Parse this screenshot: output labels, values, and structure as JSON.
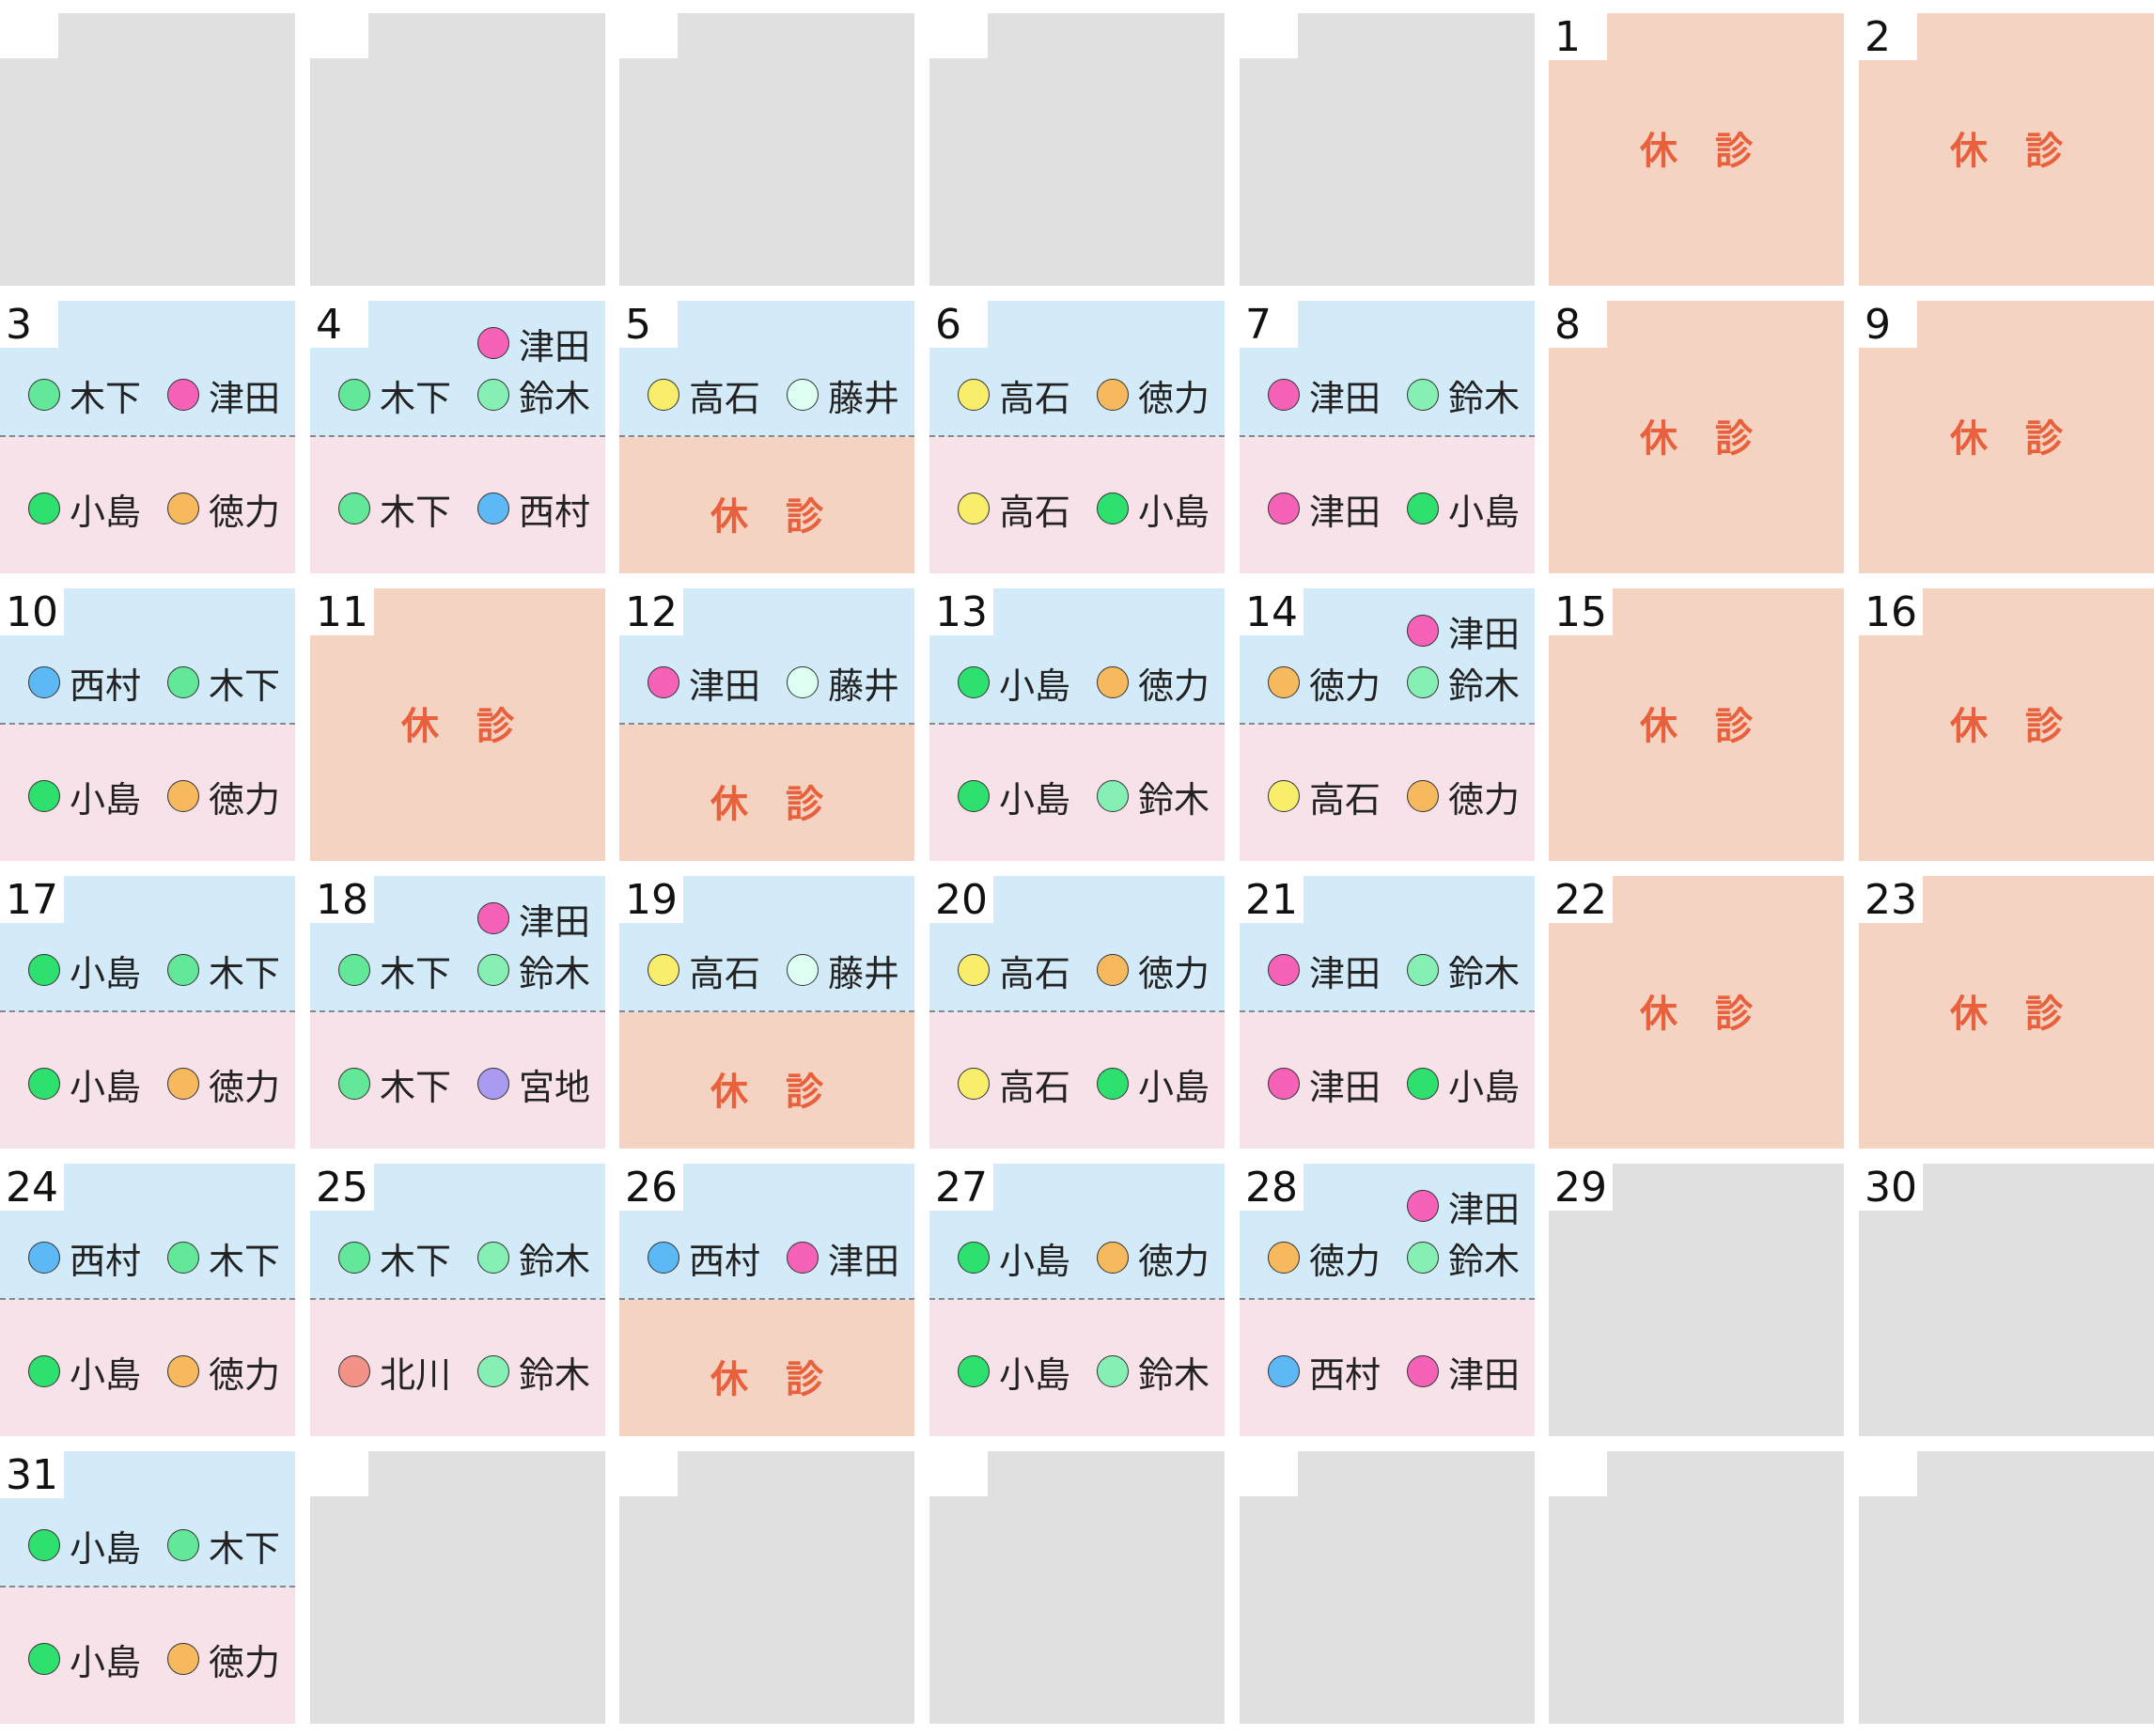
{
  "closed_label": "休　診",
  "weeks": [
    [
      {
        "status": "blank"
      },
      {
        "status": "blank"
      },
      {
        "status": "blank"
      },
      {
        "status": "blank"
      },
      {
        "status": "blank"
      },
      {
        "day": 1,
        "status": "closed"
      },
      {
        "day": 2,
        "status": "closed"
      }
    ],
    [
      {
        "day": 3,
        "status": "clinic",
        "am": [
          {
            "name": "木下",
            "color": "#62e898"
          },
          {
            "name": "津田",
            "color": "#f562b8"
          }
        ],
        "pm": [
          {
            "name": "小島",
            "color": "#2ee06e"
          },
          {
            "name": "徳力",
            "color": "#f6b95e"
          }
        ]
      },
      {
        "day": 4,
        "status": "clinic",
        "am": [
          {
            "name": "津田",
            "color": "#f562b8"
          },
          {
            "name": "木下",
            "color": "#62e898"
          },
          {
            "name": "鈴木",
            "color": "#86f0b4"
          }
        ],
        "pm": [
          {
            "name": "木下",
            "color": "#62e898"
          },
          {
            "name": "西村",
            "color": "#5cb9f6"
          }
        ]
      },
      {
        "day": 5,
        "status": "am_only",
        "am": [
          {
            "name": "高石",
            "color": "#f8ee6c"
          },
          {
            "name": "藤井",
            "color": "#dcfff2"
          }
        ]
      },
      {
        "day": 6,
        "status": "clinic",
        "am": [
          {
            "name": "高石",
            "color": "#f8ee6c"
          },
          {
            "name": "徳力",
            "color": "#f6b95e"
          }
        ],
        "pm": [
          {
            "name": "高石",
            "color": "#f8ee6c"
          },
          {
            "name": "小島",
            "color": "#2ee06e"
          }
        ]
      },
      {
        "day": 7,
        "status": "clinic",
        "am": [
          {
            "name": "津田",
            "color": "#f562b8"
          },
          {
            "name": "鈴木",
            "color": "#86f0b4"
          }
        ],
        "pm": [
          {
            "name": "津田",
            "color": "#f562b8"
          },
          {
            "name": "小島",
            "color": "#2ee06e"
          }
        ]
      },
      {
        "day": 8,
        "status": "closed"
      },
      {
        "day": 9,
        "status": "closed"
      }
    ],
    [
      {
        "day": 10,
        "status": "clinic",
        "am": [
          {
            "name": "西村",
            "color": "#5cb9f6"
          },
          {
            "name": "木下",
            "color": "#62e898"
          }
        ],
        "pm": [
          {
            "name": "小島",
            "color": "#2ee06e"
          },
          {
            "name": "徳力",
            "color": "#f6b95e"
          }
        ]
      },
      {
        "day": 11,
        "status": "closed"
      },
      {
        "day": 12,
        "status": "am_only",
        "am": [
          {
            "name": "津田",
            "color": "#f562b8"
          },
          {
            "name": "藤井",
            "color": "#dcfff2"
          }
        ]
      },
      {
        "day": 13,
        "status": "clinic",
        "am": [
          {
            "name": "小島",
            "color": "#2ee06e"
          },
          {
            "name": "徳力",
            "color": "#f6b95e"
          }
        ],
        "pm": [
          {
            "name": "小島",
            "color": "#2ee06e"
          },
          {
            "name": "鈴木",
            "color": "#86f0b4"
          }
        ]
      },
      {
        "day": 14,
        "status": "clinic",
        "am": [
          {
            "name": "津田",
            "color": "#f562b8"
          },
          {
            "name": "徳力",
            "color": "#f6b95e"
          },
          {
            "name": "鈴木",
            "color": "#86f0b4"
          }
        ],
        "pm": [
          {
            "name": "高石",
            "color": "#f8ee6c"
          },
          {
            "name": "徳力",
            "color": "#f6b95e"
          }
        ]
      },
      {
        "day": 15,
        "status": "closed"
      },
      {
        "day": 16,
        "status": "closed"
      }
    ],
    [
      {
        "day": 17,
        "status": "clinic",
        "am": [
          {
            "name": "小島",
            "color": "#2ee06e"
          },
          {
            "name": "木下",
            "color": "#62e898"
          }
        ],
        "pm": [
          {
            "name": "小島",
            "color": "#2ee06e"
          },
          {
            "name": "徳力",
            "color": "#f6b95e"
          }
        ]
      },
      {
        "day": 18,
        "status": "clinic",
        "am": [
          {
            "name": "津田",
            "color": "#f562b8"
          },
          {
            "name": "木下",
            "color": "#62e898"
          },
          {
            "name": "鈴木",
            "color": "#86f0b4"
          }
        ],
        "pm": [
          {
            "name": "木下",
            "color": "#62e898"
          },
          {
            "name": "宮地",
            "color": "#a99af2"
          }
        ]
      },
      {
        "day": 19,
        "status": "am_only",
        "am": [
          {
            "name": "高石",
            "color": "#f8ee6c"
          },
          {
            "name": "藤井",
            "color": "#dcfff2"
          }
        ]
      },
      {
        "day": 20,
        "status": "clinic",
        "am": [
          {
            "name": "高石",
            "color": "#f8ee6c"
          },
          {
            "name": "徳力",
            "color": "#f6b95e"
          }
        ],
        "pm": [
          {
            "name": "高石",
            "color": "#f8ee6c"
          },
          {
            "name": "小島",
            "color": "#2ee06e"
          }
        ]
      },
      {
        "day": 21,
        "status": "clinic",
        "am": [
          {
            "name": "津田",
            "color": "#f562b8"
          },
          {
            "name": "鈴木",
            "color": "#86f0b4"
          }
        ],
        "pm": [
          {
            "name": "津田",
            "color": "#f562b8"
          },
          {
            "name": "小島",
            "color": "#2ee06e"
          }
        ]
      },
      {
        "day": 22,
        "status": "closed"
      },
      {
        "day": 23,
        "status": "closed"
      }
    ],
    [
      {
        "day": 24,
        "status": "clinic",
        "am": [
          {
            "name": "西村",
            "color": "#5cb9f6"
          },
          {
            "name": "木下",
            "color": "#62e898"
          }
        ],
        "pm": [
          {
            "name": "小島",
            "color": "#2ee06e"
          },
          {
            "name": "徳力",
            "color": "#f6b95e"
          }
        ]
      },
      {
        "day": 25,
        "status": "clinic",
        "am": [
          {
            "name": "木下",
            "color": "#62e898"
          },
          {
            "name": "鈴木",
            "color": "#86f0b4"
          }
        ],
        "pm": [
          {
            "name": "北川",
            "color": "#f39388"
          },
          {
            "name": "鈴木",
            "color": "#86f0b4"
          }
        ]
      },
      {
        "day": 26,
        "status": "am_only",
        "am": [
          {
            "name": "西村",
            "color": "#5cb9f6"
          },
          {
            "name": "津田",
            "color": "#f562b8"
          }
        ]
      },
      {
        "day": 27,
        "status": "clinic",
        "am": [
          {
            "name": "小島",
            "color": "#2ee06e"
          },
          {
            "name": "徳力",
            "color": "#f6b95e"
          }
        ],
        "pm": [
          {
            "name": "小島",
            "color": "#2ee06e"
          },
          {
            "name": "鈴木",
            "color": "#86f0b4"
          }
        ]
      },
      {
        "day": 28,
        "status": "clinic",
        "am": [
          {
            "name": "津田",
            "color": "#f562b8"
          },
          {
            "name": "徳力",
            "color": "#f6b95e"
          },
          {
            "name": "鈴木",
            "color": "#86f0b4"
          }
        ],
        "pm": [
          {
            "name": "西村",
            "color": "#5cb9f6"
          },
          {
            "name": "津田",
            "color": "#f562b8"
          }
        ]
      },
      {
        "day": 29,
        "status": "none"
      },
      {
        "day": 30,
        "status": "none"
      }
    ],
    [
      {
        "day": 31,
        "status": "clinic",
        "am": [
          {
            "name": "小島",
            "color": "#2ee06e"
          },
          {
            "name": "木下",
            "color": "#62e898"
          }
        ],
        "pm": [
          {
            "name": "小島",
            "color": "#2ee06e"
          },
          {
            "name": "徳力",
            "color": "#f6b95e"
          }
        ]
      },
      {
        "status": "blank"
      },
      {
        "status": "blank"
      },
      {
        "status": "blank"
      },
      {
        "status": "blank"
      },
      {
        "status": "blank"
      },
      {
        "status": "blank"
      }
    ]
  ]
}
